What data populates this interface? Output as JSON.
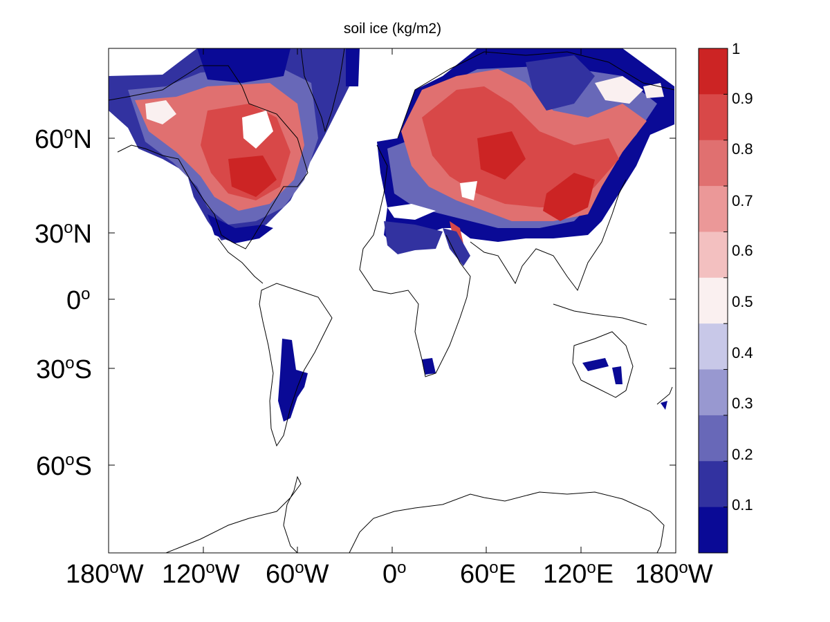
{
  "title": "soil ice (kg/m2)",
  "y_ticks": [
    {
      "num": "60",
      "deg": "o",
      "hem": "N"
    },
    {
      "num": "30",
      "deg": "o",
      "hem": "N"
    },
    {
      "num": "0",
      "deg": "o",
      "hem": ""
    },
    {
      "num": "30",
      "deg": "o",
      "hem": "S"
    },
    {
      "num": "60",
      "deg": "o",
      "hem": "S"
    }
  ],
  "x_ticks": [
    {
      "num": "180",
      "deg": "o",
      "hem": "W"
    },
    {
      "num": "120",
      "deg": "o",
      "hem": "W"
    },
    {
      "num": "60",
      "deg": "o",
      "hem": "W"
    },
    {
      "num": "0",
      "deg": "o",
      "hem": ""
    },
    {
      "num": "60",
      "deg": "o",
      "hem": "E"
    },
    {
      "num": "120",
      "deg": "o",
      "hem": "E"
    },
    {
      "num": "180",
      "deg": "o",
      "hem": "W"
    }
  ],
  "colorbar": {
    "labels": [
      "1",
      "0.9",
      "0.8",
      "0.7",
      "0.6",
      "0.5",
      "0.4",
      "0.3",
      "0.2",
      "0.1"
    ],
    "colors": [
      "#cc2424",
      "#d84848",
      "#e07070",
      "#eb9898",
      "#f3c0c0",
      "#faf0f0",
      "#c8c8e8",
      "#9898d0",
      "#6868b8",
      "#3232a0",
      "#0a0a96"
    ]
  },
  "chart_data": {
    "type": "heatmap",
    "title": "soil ice (kg/m2)",
    "projection": "mercator",
    "lon_range": [
      -180,
      180
    ],
    "lat_range": [
      -78,
      78
    ],
    "color_levels": [
      0,
      0.1,
      0.2,
      0.3,
      0.4,
      0.5,
      0.6,
      0.7,
      0.8,
      0.9,
      1
    ],
    "regions": [
      {
        "name": "north_america",
        "level": "high"
      },
      {
        "name": "northern_eurasia",
        "level": "high"
      },
      {
        "name": "southern_margins",
        "level": "low"
      },
      {
        "name": "patagonia",
        "level": "low"
      },
      {
        "name": "australia_southeast",
        "level": "low"
      },
      {
        "name": "south_africa",
        "level": "low"
      }
    ]
  }
}
